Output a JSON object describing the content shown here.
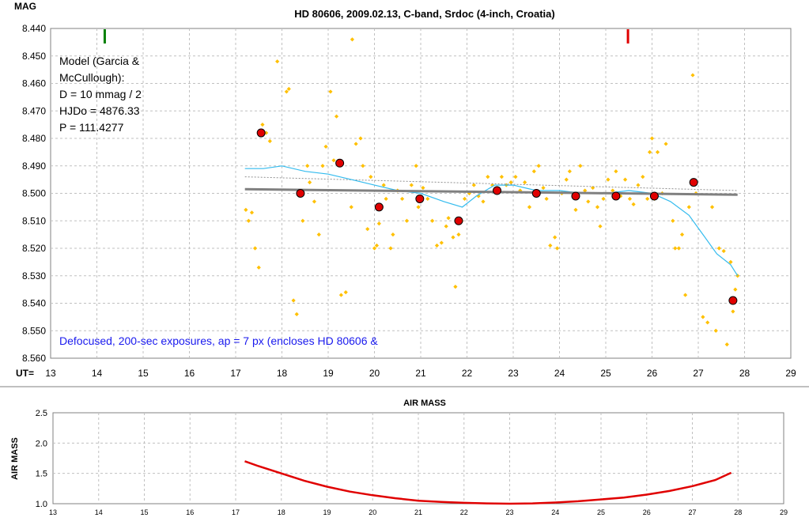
{
  "chart_data": [
    {
      "type": "scatter",
      "title": "HD 80606, 2009.02.13, C-band, Srdoc (4-inch, Croatia)",
      "ylabel": "MAG",
      "xlabel": "UT=",
      "xlim": [
        13,
        29
      ],
      "ylim": [
        8.44,
        8.56
      ],
      "y_inverted": true,
      "grid": true,
      "x_ticks": [
        "13",
        "14",
        "15",
        "16",
        "17",
        "18",
        "19",
        "20",
        "21",
        "22",
        "23",
        "24",
        "25",
        "26",
        "27",
        "28",
        "29"
      ],
      "y_ticks": [
        "8.440",
        "8.450",
        "8.460",
        "8.470",
        "8.480",
        "8.490",
        "8.500",
        "8.510",
        "8.520",
        "8.530",
        "8.540",
        "8.550",
        "8.560"
      ],
      "annotations": {
        "model_lines": [
          "Model (Garcia &",
          "McCullough):",
          "D = 10 mmag / 2",
          "HJDo = 4876.33",
          "P = 111.4277"
        ],
        "note": "Defocused, 200-sec exposures, ap = 7 px (encloses HD 80606 &"
      },
      "markers": [
        {
          "x": 14.17,
          "color": "#008000"
        },
        {
          "x": 25.48,
          "color": "#e00000"
        }
      ],
      "colors": {
        "raw": "#ffc000",
        "binned": "#e00000",
        "smooth": "#33bbee",
        "model": "#808080",
        "reference": "#909090"
      },
      "series": [
        {
          "kind": "raw",
          "x": [
            17.22,
            17.28,
            17.35,
            17.42,
            17.5,
            17.58,
            17.66,
            17.74,
            17.9,
            18.1,
            18.15,
            18.25,
            18.32,
            18.45,
            18.55,
            18.6,
            18.7,
            18.8,
            18.88,
            18.95,
            19.05,
            19.12,
            19.18,
            19.28,
            19.38,
            19.5,
            19.52,
            19.6,
            19.7,
            19.75,
            19.85,
            19.92,
            20.0,
            20.05,
            20.1,
            20.2,
            20.25,
            20.35,
            20.4,
            20.5,
            20.6,
            20.7,
            20.8,
            20.9,
            20.95,
            21.05,
            21.15,
            21.25,
            21.35,
            21.45,
            21.55,
            21.6,
            21.7,
            21.75,
            21.82,
            21.88,
            21.95,
            22.05,
            22.15,
            22.25,
            22.35,
            22.45,
            22.55,
            22.65,
            22.75,
            22.85,
            22.95,
            23.05,
            23.15,
            23.25,
            23.35,
            23.45,
            23.55,
            23.65,
            23.72,
            23.8,
            23.9,
            23.95,
            24.05,
            24.15,
            24.22,
            24.35,
            24.45,
            24.55,
            24.62,
            24.72,
            24.82,
            24.88,
            24.95,
            25.05,
            25.15,
            25.22,
            25.32,
            25.42,
            25.52,
            25.6,
            25.7,
            25.8,
            25.9,
            25.95,
            26.0,
            26.05,
            26.12,
            26.22,
            26.3,
            26.45,
            26.5,
            26.58,
            26.65,
            26.72,
            26.8,
            26.88,
            26.95,
            27.1,
            27.2,
            27.3,
            27.38,
            27.45,
            27.55,
            27.62,
            27.7,
            27.75,
            27.8,
            27.85
          ],
          "y": [
            8.506,
            8.51,
            8.507,
            8.52,
            8.527,
            8.475,
            8.478,
            8.481,
            8.452,
            8.463,
            8.462,
            8.539,
            8.544,
            8.51,
            8.49,
            8.496,
            8.503,
            8.515,
            8.49,
            8.483,
            8.463,
            8.488,
            8.472,
            8.537,
            8.536,
            8.505,
            8.444,
            8.482,
            8.48,
            8.49,
            8.513,
            8.494,
            8.52,
            8.519,
            8.511,
            8.497,
            8.502,
            8.52,
            8.515,
            8.499,
            8.502,
            8.51,
            8.497,
            8.49,
            8.505,
            8.498,
            8.502,
            8.51,
            8.519,
            8.518,
            8.512,
            8.509,
            8.516,
            8.534,
            8.515,
            8.51,
            8.502,
            8.5,
            8.497,
            8.501,
            8.503,
            8.494,
            8.497,
            8.498,
            8.494,
            8.497,
            8.496,
            8.494,
            8.499,
            8.496,
            8.505,
            8.492,
            8.49,
            8.498,
            8.502,
            8.519,
            8.516,
            8.52,
            8.5,
            8.495,
            8.492,
            8.506,
            8.49,
            8.499,
            8.503,
            8.498,
            8.505,
            8.512,
            8.502,
            8.495,
            8.499,
            8.492,
            8.501,
            8.495,
            8.502,
            8.504,
            8.497,
            8.494,
            8.502,
            8.485,
            8.48,
            8.502,
            8.485,
            8.5,
            8.482,
            8.51,
            8.52,
            8.52,
            8.515,
            8.537,
            8.505,
            8.457,
            8.5,
            8.545,
            8.547,
            8.505,
            8.55,
            8.52,
            8.521,
            8.555,
            8.525,
            8.543,
            8.535,
            8.53
          ]
        },
        {
          "kind": "binned",
          "x": [
            17.55,
            18.4,
            19.25,
            20.1,
            20.98,
            21.82,
            22.65,
            23.5,
            24.35,
            25.22,
            26.05,
            26.9,
            27.75
          ],
          "y": [
            8.478,
            8.5,
            8.489,
            8.505,
            8.502,
            8.51,
            8.499,
            8.5,
            8.501,
            8.501,
            8.501,
            8.496,
            8.539
          ]
        },
        {
          "kind": "smooth",
          "x": [
            17.2,
            17.6,
            18.0,
            18.5,
            19.0,
            19.5,
            20.0,
            20.5,
            21.0,
            21.5,
            21.9,
            22.2,
            22.6,
            23.0,
            23.5,
            24.0,
            24.5,
            25.0,
            25.5,
            26.0,
            26.4,
            26.8,
            27.1,
            27.4,
            27.7,
            27.85
          ],
          "y": [
            8.491,
            8.491,
            8.49,
            8.492,
            8.493,
            8.495,
            8.497,
            8.499,
            8.5,
            8.503,
            8.505,
            8.501,
            8.497,
            8.497,
            8.499,
            8.499,
            8.5,
            8.5,
            8.499,
            8.5,
            8.503,
            8.508,
            8.515,
            8.522,
            8.526,
            8.53
          ]
        },
        {
          "kind": "model",
          "x": [
            17.2,
            27.85
          ],
          "y": [
            8.4985,
            8.5005
          ]
        },
        {
          "kind": "reference",
          "x": [
            17.2,
            27.85
          ],
          "y": [
            8.494,
            8.499
          ]
        }
      ]
    },
    {
      "type": "line",
      "title": "AIR MASS",
      "ylabel": "AIR MASS",
      "xlim": [
        13,
        29
      ],
      "ylim": [
        1.0,
        2.5
      ],
      "grid": true,
      "x_ticks": [
        "13",
        "14",
        "15",
        "16",
        "17",
        "18",
        "19",
        "20",
        "21",
        "22",
        "23",
        "24",
        "25",
        "26",
        "27",
        "28",
        "29"
      ],
      "y_ticks": [
        "1.0",
        "1.5",
        "2.0",
        "2.5"
      ],
      "colors": {
        "line": "#e00000"
      },
      "series": [
        {
          "kind": "airmass",
          "x": [
            17.2,
            17.5,
            18.0,
            18.5,
            19.0,
            19.5,
            20.0,
            20.5,
            21.0,
            21.5,
            22.0,
            22.5,
            23.0,
            23.5,
            24.0,
            24.5,
            25.0,
            25.5,
            26.0,
            26.5,
            27.0,
            27.5,
            27.85
          ],
          "y": [
            1.7,
            1.62,
            1.5,
            1.38,
            1.28,
            1.2,
            1.14,
            1.09,
            1.05,
            1.03,
            1.015,
            1.005,
            1.0,
            1.005,
            1.02,
            1.04,
            1.07,
            1.1,
            1.15,
            1.21,
            1.29,
            1.39,
            1.51
          ]
        }
      ]
    }
  ]
}
